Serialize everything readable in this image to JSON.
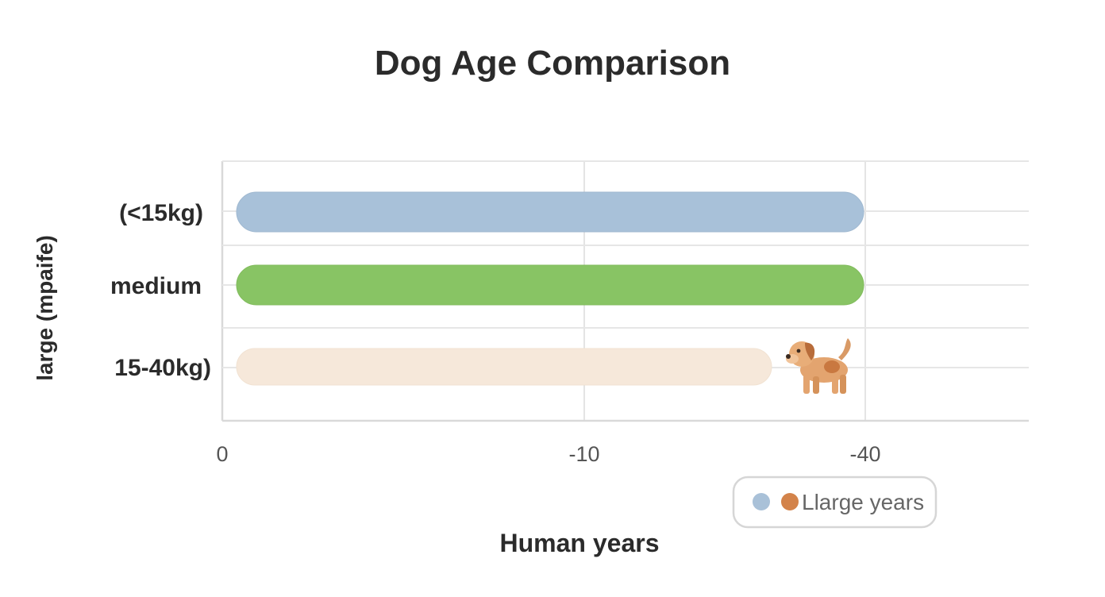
{
  "chart_data": {
    "type": "bar",
    "orientation": "horizontal",
    "title": "Dog Age Comparison",
    "xlabel": "Human years",
    "ylabel": "large (mpaife)",
    "categories": [
      "(<15kg)",
      "medium",
      "15-40kg)"
    ],
    "values": [
      40,
      40,
      36
    ],
    "x_ticks": [
      "0",
      "-10",
      "-40"
    ],
    "xlim": [
      0,
      45
    ],
    "grid": true,
    "legend": {
      "placement": "bottom-right",
      "label": "Llarge years",
      "markers": [
        "#a9c1d8",
        "#d3834a"
      ]
    },
    "colors": [
      "#a8c1d9",
      "#88c464",
      "#f6e8da"
    ],
    "annotation_icon": "dog-icon"
  }
}
